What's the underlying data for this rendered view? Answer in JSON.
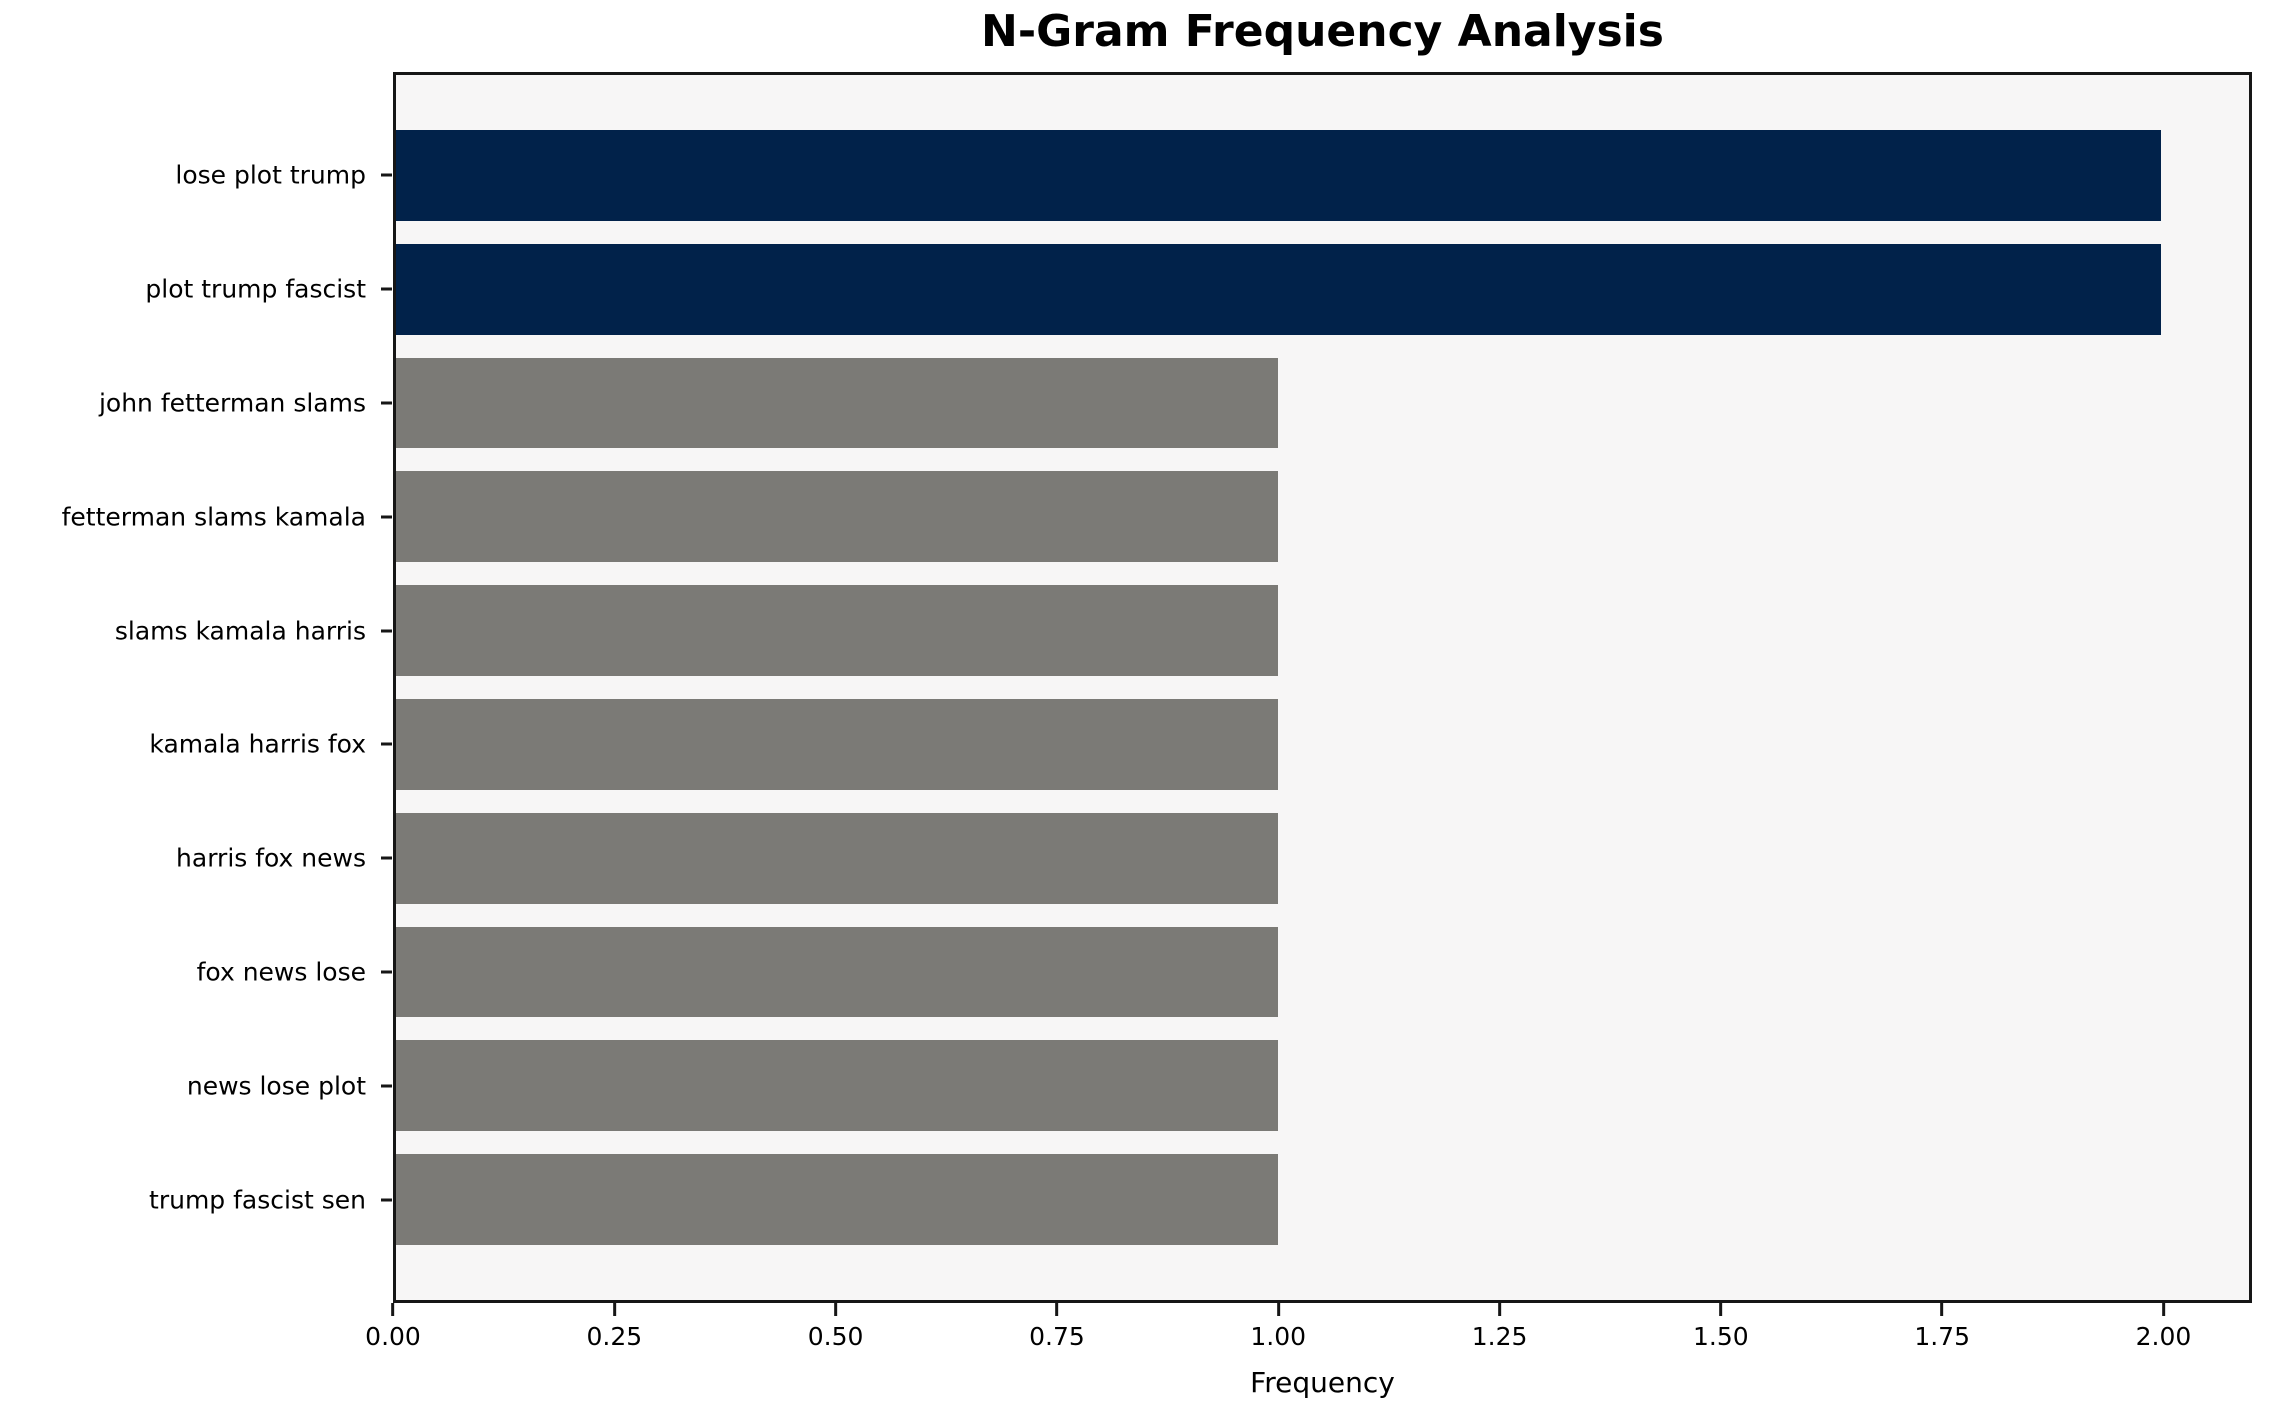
{
  "chart_data": {
    "type": "bar",
    "orientation": "horizontal",
    "title": "N-Gram Frequency Analysis",
    "xlabel": "Frequency",
    "ylabel": "",
    "categories": [
      "lose plot trump",
      "plot trump fascist",
      "john fetterman slams",
      "fetterman slams kamala",
      "slams kamala harris",
      "kamala harris fox",
      "harris fox news",
      "fox news lose",
      "news lose plot",
      "trump fascist sen"
    ],
    "values": [
      2,
      2,
      1,
      1,
      1,
      1,
      1,
      1,
      1,
      1
    ],
    "bar_colors": [
      "#01224a",
      "#01224a",
      "#7b7a76",
      "#7b7a76",
      "#7b7a76",
      "#7b7a76",
      "#7b7a76",
      "#7b7a76",
      "#7b7a76",
      "#7b7a76"
    ],
    "xlim": [
      0,
      2.1
    ],
    "xticks": [
      0.0,
      0.25,
      0.5,
      0.75,
      1.0,
      1.25,
      1.5,
      1.75,
      2.0
    ],
    "xtick_labels": [
      "0.00",
      "0.25",
      "0.50",
      "0.75",
      "1.00",
      "1.25",
      "1.50",
      "1.75",
      "2.00"
    ],
    "grid": false,
    "legend": null,
    "colors": {
      "highlight_bar": "#01224a",
      "default_bar": "#7b7a76",
      "plot_background": "#f7f6f6",
      "figure_background": "#ffffff",
      "spine": "#161616",
      "text": "#000000"
    }
  }
}
